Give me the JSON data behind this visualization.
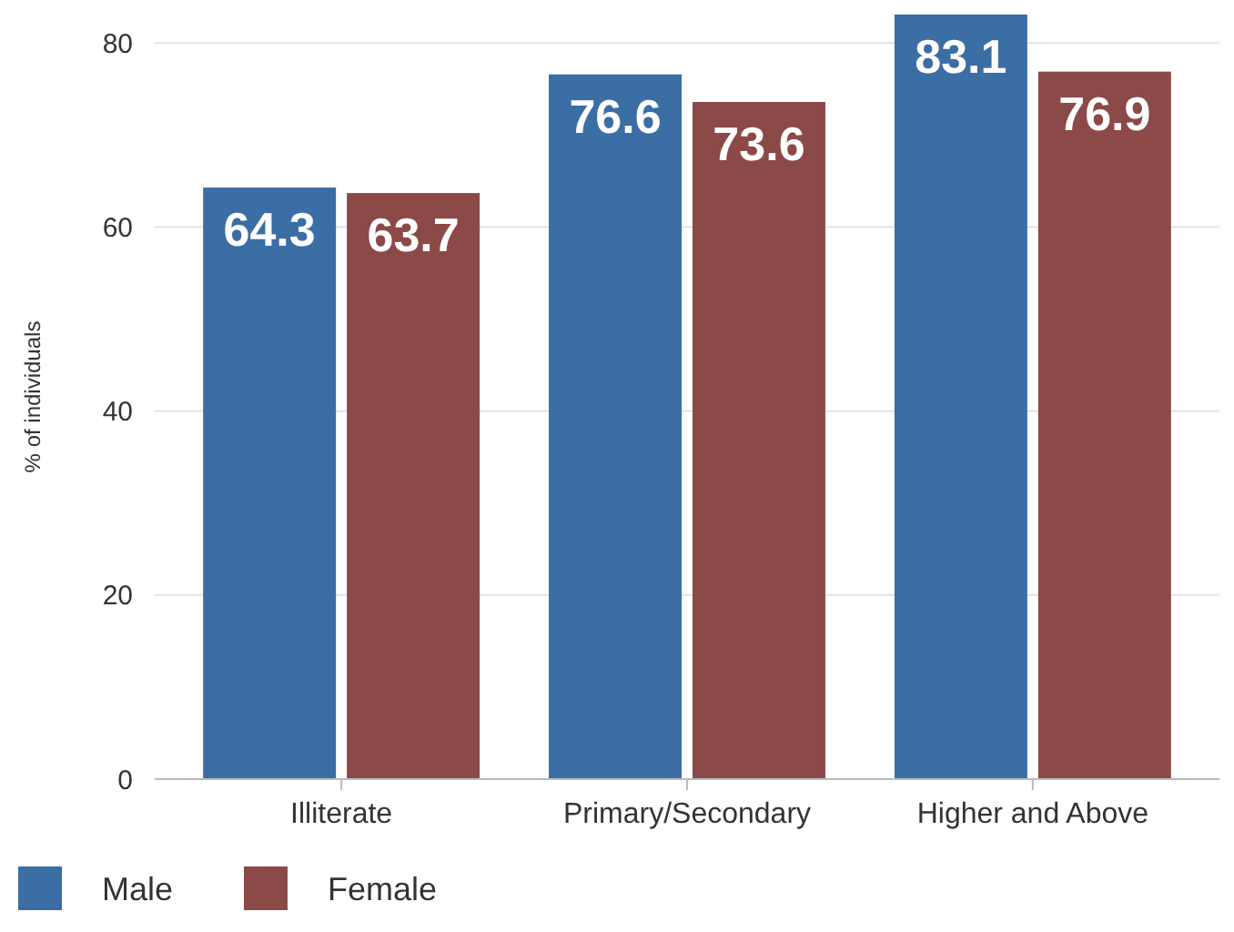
{
  "chart_data": {
    "type": "bar",
    "ylabel": "% of individuals",
    "categories": [
      "Illiterate",
      "Primary/Secondary",
      "Higher and Above"
    ],
    "series": [
      {
        "name": "Male",
        "color": "#3a6ea5",
        "values": [
          64.3,
          76.6,
          83.1
        ]
      },
      {
        "name": "Female",
        "color": "#8b4a47",
        "values": [
          63.7,
          73.6,
          76.9
        ]
      }
    ],
    "ylim": [
      0,
      83.1
    ],
    "yticks": [
      0,
      20,
      40,
      60,
      80
    ],
    "grid": "y",
    "legend": "bottom left",
    "data_labels": true
  }
}
